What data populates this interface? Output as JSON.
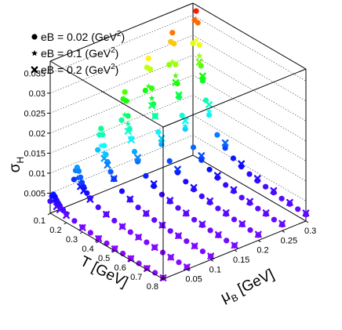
{
  "chart_data": {
    "type": "scatter",
    "projection": "3d",
    "title": "",
    "xlabel": "T [GeV]",
    "ylabel": "μ_B [GeV]",
    "zlabel": "σ_H",
    "xlim": [
      0.1,
      0.8
    ],
    "ylim": [
      0.0,
      0.3
    ],
    "zlim": [
      0.0,
      0.038
    ],
    "x_ticks": [
      "0.1",
      "0.2",
      "0.3",
      "0.4",
      "0.5",
      "0.6",
      "0.7",
      "0.8"
    ],
    "y_ticks": [
      "0.05",
      "0.1",
      "0.15",
      "0.2",
      "0.25",
      "0.3"
    ],
    "z_ticks": [
      "0.005",
      "0.01",
      "0.015",
      "0.02",
      "0.025",
      "0.03",
      "0.035"
    ],
    "grid": true,
    "legend_position": "top-left",
    "color_scale": "rainbow by σ_H (violet = low, red = high)",
    "mu_values": [
      0.0,
      0.05,
      0.1,
      0.15,
      0.2,
      0.25,
      0.3
    ],
    "series": [
      {
        "label": "eB = 0.02 (GeV",
        "label_sup": "2",
        "label_end": ")",
        "marker": "circle",
        "T": [
          0.1,
          0.11,
          0.12,
          0.13,
          0.14,
          0.15,
          0.16,
          0.18,
          0.2,
          0.25,
          0.3,
          0.35,
          0.4,
          0.45,
          0.5,
          0.55,
          0.6,
          0.65,
          0.7,
          0.75,
          0.8
        ],
        "sigma_by_mu": [
          [
            0.003,
            0.0045,
            0.0052,
            0.0048,
            0.0042,
            0.0037,
            0.0033,
            0.0027,
            0.0022,
            0.0016,
            0.0012,
            0.001,
            0.0008,
            0.0007,
            0.0006,
            0.0005,
            0.0005,
            0.0004,
            0.0004,
            0.0004,
            0.0003
          ],
          [
            0.006,
            0.0085,
            0.0095,
            0.0088,
            0.0075,
            0.0064,
            0.0056,
            0.0045,
            0.0037,
            0.0026,
            0.002,
            0.0016,
            0.0013,
            0.0011,
            0.001,
            0.0009,
            0.0008,
            0.0007,
            0.0006,
            0.0006,
            0.0005
          ],
          [
            0.011,
            0.015,
            0.0168,
            0.0155,
            0.013,
            0.011,
            0.0094,
            0.0074,
            0.006,
            0.0042,
            0.0032,
            0.0025,
            0.002,
            0.0017,
            0.0015,
            0.0013,
            0.0012,
            0.0011,
            0.001,
            0.0009,
            0.0008
          ],
          [
            0.016,
            0.0215,
            0.0235,
            0.0215,
            0.018,
            0.015,
            0.0128,
            0.01,
            0.008,
            0.0056,
            0.0042,
            0.0033,
            0.0027,
            0.0023,
            0.002,
            0.0017,
            0.0015,
            0.0014,
            0.0013,
            0.0012,
            0.0011
          ],
          [
            0.021,
            0.027,
            0.0295,
            0.027,
            0.0225,
            0.0188,
            0.016,
            0.0125,
            0.0099,
            0.0069,
            0.0052,
            0.0041,
            0.0033,
            0.0028,
            0.0024,
            0.0021,
            0.0019,
            0.0017,
            0.0016,
            0.0014,
            0.0013
          ],
          [
            0.025,
            0.031,
            0.0335,
            0.031,
            0.026,
            0.0215,
            0.0183,
            0.0142,
            0.0113,
            0.0079,
            0.0059,
            0.0047,
            0.0038,
            0.0032,
            0.0028,
            0.0024,
            0.0022,
            0.002,
            0.0018,
            0.0016,
            0.0015
          ],
          [
            0.028,
            0.034,
            0.0365,
            0.0338,
            0.0285,
            0.0235,
            0.02,
            0.0156,
            0.0124,
            0.0086,
            0.0065,
            0.0051,
            0.0042,
            0.0035,
            0.003,
            0.0027,
            0.0024,
            0.0021,
            0.0019,
            0.0018,
            0.0016
          ]
        ]
      },
      {
        "label": "eB = 0.1 (GeV",
        "label_sup": "2",
        "label_end": ")",
        "marker": "star",
        "T": [
          0.12,
          0.14,
          0.16,
          0.2,
          0.3,
          0.4,
          0.5,
          0.6,
          0.7,
          0.8
        ],
        "sigma_by_mu": [
          [
            0.0035,
            0.0033,
            0.0028,
            0.0021,
            0.0012,
            0.0008,
            0.0006,
            0.0005,
            0.0004,
            0.0003
          ],
          [
            0.0068,
            0.0062,
            0.0052,
            0.0037,
            0.0021,
            0.0014,
            0.001,
            0.0008,
            0.0007,
            0.0006
          ],
          [
            0.0125,
            0.0112,
            0.0092,
            0.0062,
            0.0034,
            0.0022,
            0.0016,
            0.0013,
            0.0011,
            0.0009
          ],
          [
            0.0178,
            0.016,
            0.013,
            0.0085,
            0.0045,
            0.0029,
            0.0021,
            0.0017,
            0.0014,
            0.0012
          ],
          [
            0.0225,
            0.02,
            0.0162,
            0.0105,
            0.0055,
            0.0035,
            0.0026,
            0.002,
            0.0017,
            0.0014
          ],
          [
            0.0262,
            0.0232,
            0.0188,
            0.012,
            0.0063,
            0.0041,
            0.003,
            0.0023,
            0.0019,
            0.0016
          ],
          [
            0.0292,
            0.0258,
            0.0208,
            0.0133,
            0.0069,
            0.0045,
            0.0033,
            0.0026,
            0.0021,
            0.0018
          ]
        ]
      },
      {
        "label": "eB = 0.2 (GeV",
        "label_sup": "2",
        "label_end": ")",
        "marker": "cross",
        "T": [
          0.14,
          0.16,
          0.2,
          0.3,
          0.4,
          0.5,
          0.6,
          0.7,
          0.8
        ],
        "sigma_by_mu": [
          [
            0.0026,
            0.0023,
            0.0018,
            0.0011,
            0.0007,
            0.0005,
            0.0004,
            0.0003,
            0.0003
          ],
          [
            0.0052,
            0.0046,
            0.0034,
            0.002,
            0.0013,
            0.001,
            0.0008,
            0.0007,
            0.0006
          ],
          [
            0.0098,
            0.0086,
            0.0062,
            0.0034,
            0.0022,
            0.0016,
            0.0013,
            0.0011,
            0.0009
          ],
          [
            0.0142,
            0.0125,
            0.009,
            0.0048,
            0.003,
            0.0022,
            0.0018,
            0.0015,
            0.0012
          ],
          [
            0.0182,
            0.016,
            0.0114,
            0.006,
            0.0038,
            0.0028,
            0.0022,
            0.0018,
            0.0015
          ],
          [
            0.0215,
            0.0189,
            0.0134,
            0.007,
            0.0044,
            0.0032,
            0.0026,
            0.0021,
            0.0018
          ],
          [
            0.0242,
            0.0212,
            0.015,
            0.0078,
            0.0049,
            0.0036,
            0.0029,
            0.0023,
            0.002
          ]
        ]
      }
    ]
  }
}
